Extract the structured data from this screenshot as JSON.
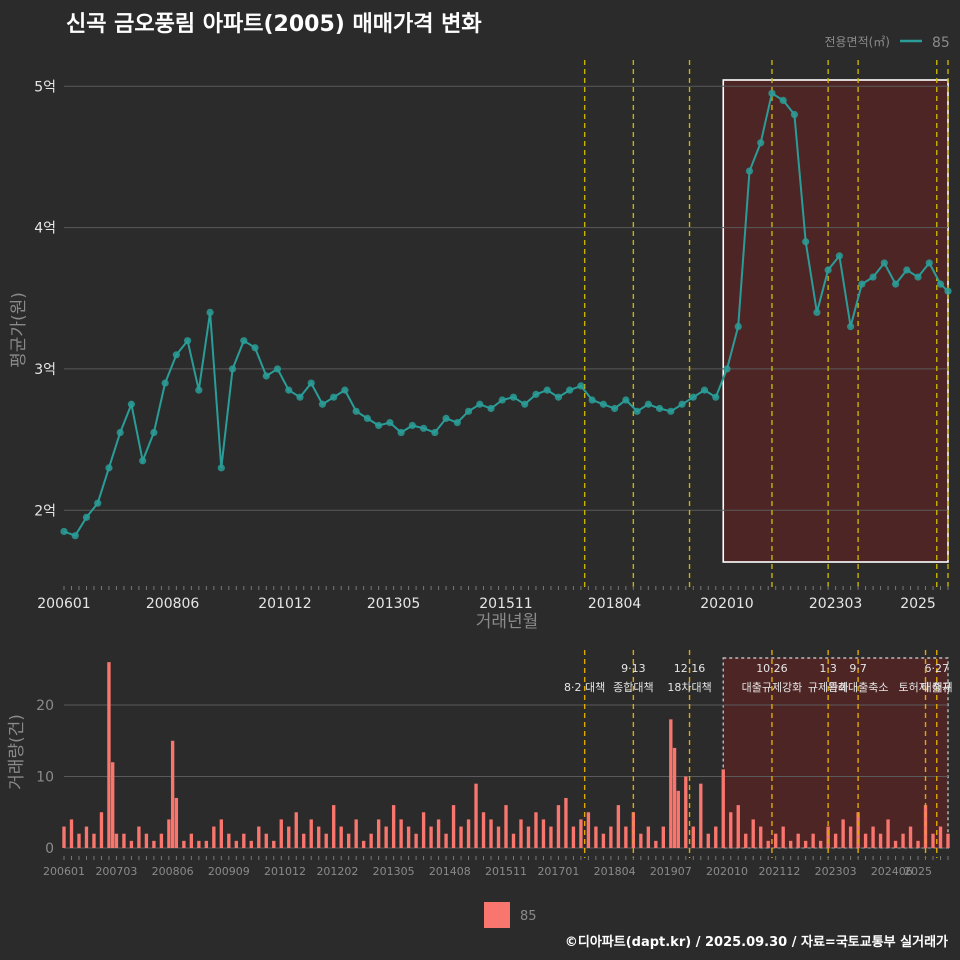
{
  "title": "신곡 금오풍림 아파트(2005) 매매가격 변화",
  "footer": "©디아파트(dapt.kr) / 2025.09.30 / 자료=국토교통부 실거래가",
  "colors": {
    "background": "#2b2b2b",
    "price_line": "#2a9d98",
    "volume_bar": "#f8766d",
    "highlight_fill": "#7a1f1f",
    "policy_line": "#c8b400",
    "grid": "#5a5a5a",
    "text": "#e6e6e6",
    "muted": "#8a8a8a"
  },
  "chart_data": [
    {
      "type": "line",
      "name": "price",
      "xlabel": "거래년월",
      "ylabel": "평균가(원)",
      "legend_title": "전용면적(㎡)",
      "legend_position": "top-right",
      "grid": true,
      "x_tick_labels": [
        "200601",
        "200806",
        "201012",
        "201305",
        "201511",
        "201804",
        "202010",
        "202303",
        "2025"
      ],
      "y_ticks": [
        2,
        3,
        4,
        5
      ],
      "y_tick_labels": [
        "2억",
        "3억",
        "4억",
        "5억"
      ],
      "xlim": [
        "2006-01",
        "2025-09"
      ],
      "ylim": [
        1.45,
        5.2
      ],
      "highlight_range": [
        "2020-09",
        "2025-09"
      ],
      "policy_dates": [
        "2017-08",
        "2018-09",
        "2019-12",
        "2021-10",
        "2023-01",
        "2023-09",
        "2025-06",
        "2025-09"
      ],
      "series": [
        {
          "name": "85",
          "x": [
            "2006-01",
            "2006-04",
            "2006-07",
            "2006-10",
            "2007-01",
            "2007-04",
            "2007-07",
            "2007-10",
            "2008-01",
            "2008-04",
            "2008-07",
            "2008-10",
            "2009-01",
            "2009-04",
            "2009-07",
            "2009-10",
            "2010-01",
            "2010-04",
            "2010-07",
            "2010-10",
            "2011-01",
            "2011-04",
            "2011-07",
            "2011-10",
            "2012-01",
            "2012-04",
            "2012-07",
            "2012-10",
            "2013-01",
            "2013-04",
            "2013-07",
            "2013-10",
            "2014-01",
            "2014-04",
            "2014-07",
            "2014-10",
            "2015-01",
            "2015-04",
            "2015-07",
            "2015-10",
            "2016-01",
            "2016-04",
            "2016-07",
            "2016-10",
            "2017-01",
            "2017-04",
            "2017-07",
            "2017-10",
            "2018-01",
            "2018-04",
            "2018-07",
            "2018-10",
            "2019-01",
            "2019-04",
            "2019-07",
            "2019-10",
            "2020-01",
            "2020-04",
            "2020-07",
            "2020-10",
            "2021-01",
            "2021-04",
            "2021-07",
            "2021-10",
            "2022-01",
            "2022-04",
            "2022-07",
            "2022-10",
            "2023-01",
            "2023-04",
            "2023-07",
            "2023-10",
            "2024-01",
            "2024-04",
            "2024-07",
            "2024-10",
            "2025-01",
            "2025-04",
            "2025-07",
            "2025-09"
          ],
          "y": [
            1.85,
            1.82,
            1.95,
            2.05,
            2.3,
            2.55,
            2.75,
            2.35,
            2.55,
            2.9,
            3.1,
            3.2,
            2.85,
            3.4,
            2.3,
            3.0,
            3.2,
            3.15,
            2.95,
            3.0,
            2.85,
            2.8,
            2.9,
            2.75,
            2.8,
            2.85,
            2.7,
            2.65,
            2.6,
            2.62,
            2.55,
            2.6,
            2.58,
            2.55,
            2.65,
            2.62,
            2.7,
            2.75,
            2.72,
            2.78,
            2.8,
            2.75,
            2.82,
            2.85,
            2.8,
            2.85,
            2.88,
            2.78,
            2.75,
            2.72,
            2.78,
            2.7,
            2.75,
            2.72,
            2.7,
            2.75,
            2.8,
            2.85,
            2.8,
            3.0,
            3.3,
            4.4,
            4.6,
            4.95,
            4.9,
            4.8,
            3.9,
            3.4,
            3.7,
            3.8,
            3.3,
            3.6,
            3.65,
            3.75,
            3.6,
            3.7,
            3.65,
            3.75,
            3.6,
            3.55
          ]
        }
      ]
    },
    {
      "type": "bar",
      "name": "volume",
      "ylabel": "거래량(건)",
      "legend_position": "bottom",
      "grid": true,
      "x_tick_labels": [
        "200601",
        "200703",
        "200806",
        "200909",
        "201012",
        "201202",
        "201305",
        "201408",
        "201511",
        "201701",
        "201804",
        "201907",
        "202010",
        "202112",
        "202303",
        "202406",
        "2025"
      ],
      "y_ticks": [
        0,
        10,
        20
      ],
      "ylim": [
        0,
        27
      ],
      "highlight_range": [
        "2020-09",
        "2025-09"
      ],
      "policy_annotations": [
        {
          "date": "2017-08",
          "label_top": "",
          "label_bottom": "8·2 대책"
        },
        {
          "date": "2018-09",
          "label_top": "9·13",
          "label_bottom": "종합대책"
        },
        {
          "date": "2019-12",
          "label_top": "12·16",
          "label_bottom": "18차대책"
        },
        {
          "date": "2021-10",
          "label_top": "10·26",
          "label_bottom": "대출규제강화"
        },
        {
          "date": "2023-01",
          "label_top": "1·3",
          "label_bottom": "규제완화"
        },
        {
          "date": "2023-09",
          "label_top": "9·7",
          "label_bottom": "특례대출축소"
        },
        {
          "date": "2025-06",
          "label_top": "6·27",
          "label_bottom": "대출규"
        },
        {
          "date": "2025-03",
          "label_top": "",
          "label_bottom": "토허제 해제"
        }
      ],
      "series": [
        {
          "name": "85",
          "x": [
            "2006-01",
            "2006-03",
            "2006-05",
            "2006-07",
            "2006-09",
            "2006-11",
            "2007-01",
            "2007-02",
            "2007-03",
            "2007-05",
            "2007-07",
            "2007-09",
            "2007-11",
            "2008-01",
            "2008-03",
            "2008-05",
            "2008-06",
            "2008-07",
            "2008-09",
            "2008-11",
            "2009-01",
            "2009-03",
            "2009-05",
            "2009-07",
            "2009-09",
            "2009-11",
            "2010-01",
            "2010-03",
            "2010-05",
            "2010-07",
            "2010-09",
            "2010-11",
            "2011-01",
            "2011-03",
            "2011-05",
            "2011-07",
            "2011-09",
            "2011-11",
            "2012-01",
            "2012-03",
            "2012-05",
            "2012-07",
            "2012-09",
            "2012-11",
            "2013-01",
            "2013-03",
            "2013-05",
            "2013-07",
            "2013-09",
            "2013-11",
            "2014-01",
            "2014-03",
            "2014-05",
            "2014-07",
            "2014-09",
            "2014-11",
            "2015-01",
            "2015-03",
            "2015-05",
            "2015-07",
            "2015-09",
            "2015-11",
            "2016-01",
            "2016-03",
            "2016-05",
            "2016-07",
            "2016-09",
            "2016-11",
            "2017-01",
            "2017-03",
            "2017-05",
            "2017-07",
            "2017-09",
            "2017-11",
            "2018-01",
            "2018-03",
            "2018-05",
            "2018-07",
            "2018-09",
            "2018-11",
            "2019-01",
            "2019-03",
            "2019-05",
            "2019-07",
            "2019-08",
            "2019-09",
            "2019-11",
            "2020-01",
            "2020-03",
            "2020-05",
            "2020-07",
            "2020-09",
            "2020-11",
            "2021-01",
            "2021-03",
            "2021-05",
            "2021-07",
            "2021-09",
            "2021-11",
            "2022-01",
            "2022-03",
            "2022-05",
            "2022-07",
            "2022-09",
            "2022-11",
            "2023-01",
            "2023-03",
            "2023-05",
            "2023-07",
            "2023-09",
            "2023-11",
            "2024-01",
            "2024-03",
            "2024-05",
            "2024-07",
            "2024-09",
            "2024-11",
            "2025-01",
            "2025-03",
            "2025-05",
            "2025-07",
            "2025-09"
          ],
          "values": [
            3,
            4,
            2,
            3,
            2,
            5,
            26,
            12,
            2,
            2,
            1,
            3,
            2,
            1,
            2,
            4,
            15,
            7,
            1,
            2,
            1,
            1,
            3,
            4,
            2,
            1,
            2,
            1,
            3,
            2,
            1,
            4,
            3,
            5,
            2,
            4,
            3,
            2,
            6,
            3,
            2,
            4,
            1,
            2,
            4,
            3,
            6,
            4,
            3,
            2,
            5,
            3,
            4,
            2,
            6,
            3,
            4,
            9,
            5,
            4,
            3,
            6,
            2,
            4,
            3,
            5,
            4,
            3,
            6,
            7,
            3,
            4,
            5,
            3,
            2,
            3,
            6,
            3,
            5,
            2,
            3,
            1,
            3,
            18,
            14,
            8,
            10,
            3,
            9,
            2,
            3,
            11,
            5,
            6,
            2,
            4,
            3,
            1,
            2,
            3,
            1,
            2,
            1,
            2,
            1,
            3,
            2,
            4,
            3,
            5,
            2,
            3,
            2,
            4,
            1,
            2,
            3,
            1,
            6,
            2,
            3,
            2
          ]
        }
      ]
    }
  ]
}
